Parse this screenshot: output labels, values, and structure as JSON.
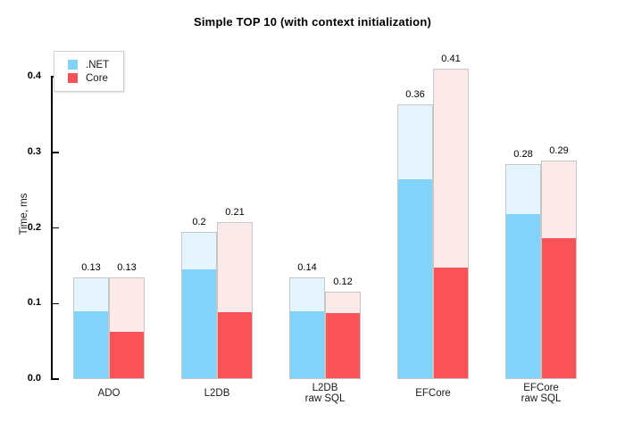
{
  "chart_data": {
    "type": "bar",
    "title": "Simple TOP 10 (with context initialization)",
    "ylabel": "Time, ms",
    "ylim": [
      0,
      0.4
    ],
    "yticks": [
      "0.0",
      "0.1",
      "0.2",
      "0.3",
      "0.4"
    ],
    "grid": false,
    "background": "#ffffff",
    "legend": {
      "position": "top-left",
      "entries": [
        {
          "label": ".NET",
          "color": "#82d3fa"
        },
        {
          "label": "Core",
          "color": "#fa5357"
        }
      ]
    },
    "categories": [
      [
        "ADO"
      ],
      [
        "L2DB"
      ],
      [
        "L2DB",
        "raw SQL"
      ],
      [
        "EFCore"
      ],
      [
        "EFCore",
        "raw SQL"
      ]
    ],
    "series": [
      {
        "name": ".NET",
        "color": "#82d3fa",
        "faded_color": "#e6f4fd",
        "totals": [
          0.135,
          0.195,
          0.135,
          0.364,
          0.284
        ],
        "solids": [
          0.09,
          0.145,
          0.09,
          0.264,
          0.218
        ],
        "labels": [
          "0.13",
          "0.2",
          "0.14",
          "0.36",
          "0.28"
        ]
      },
      {
        "name": "Core",
        "color": "#fa5357",
        "faded_color": "#fceaea",
        "totals": [
          0.134,
          0.208,
          0.116,
          0.411,
          0.289
        ],
        "solids": [
          0.062,
          0.089,
          0.087,
          0.147,
          0.187
        ],
        "labels": [
          "0.13",
          "0.21",
          "0.12",
          "0.41",
          "0.29"
        ]
      }
    ]
  }
}
